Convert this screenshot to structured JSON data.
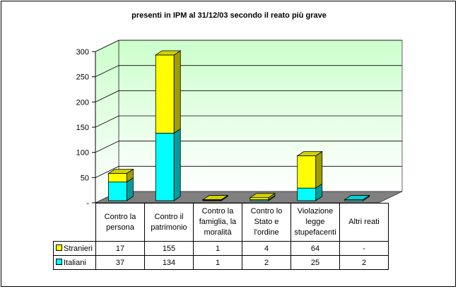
{
  "title": "presenti in IPM al 31/12/03 secondo il reato più grave",
  "colors": {
    "stranieri": "#ffff00",
    "italiani": "#00ffff",
    "wall_top": "#ccffcc",
    "wall_bottom": "#ffffff"
  },
  "chart_data": {
    "type": "bar",
    "stacked": true,
    "three_d": true,
    "title": "presenti in IPM al 31/12/03 secondo il reato più grave",
    "categories": [
      "Contro la persona",
      "Contro il patrimonio",
      "Contro la famiglia, la moralità",
      "Contro lo Stato e l'ordine",
      "Violazione legge stupefacenti",
      "Altri reati"
    ],
    "series": [
      {
        "name": "Italiani",
        "values": [
          37,
          134,
          1,
          2,
          25,
          2
        ],
        "labels": [
          "37",
          "134",
          "1",
          "2",
          "25",
          "2"
        ],
        "color": "#00ffff"
      },
      {
        "name": "Stranieri",
        "values": [
          17,
          155,
          1,
          4,
          64,
          0
        ],
        "labels": [
          "17",
          "155",
          "1",
          "4",
          "64",
          "-"
        ],
        "color": "#ffff00"
      }
    ],
    "yticks": [
      "300",
      "250",
      "200",
      "150",
      "100",
      "50",
      "-"
    ],
    "ylim": [
      0,
      300
    ],
    "grid": true,
    "legend": "data-table"
  },
  "table": {
    "cat_labels": [
      [
        "Contro la",
        "persona"
      ],
      [
        "Contro il",
        "patrimonio"
      ],
      [
        "Contro la",
        "famiglia, la",
        "moralità"
      ],
      [
        "Contro lo",
        "Stato e",
        "l'ordine"
      ],
      [
        "Violazione",
        "legge",
        "stupefacenti"
      ],
      [
        "Altri reati"
      ]
    ],
    "row_stranieri": {
      "name": "Stranieri",
      "cells": [
        "17",
        "155",
        "1",
        "4",
        "64",
        "-"
      ]
    },
    "row_italiani": {
      "name": "Italiani",
      "cells": [
        "37",
        "134",
        "1",
        "2",
        "25",
        "2"
      ]
    }
  }
}
